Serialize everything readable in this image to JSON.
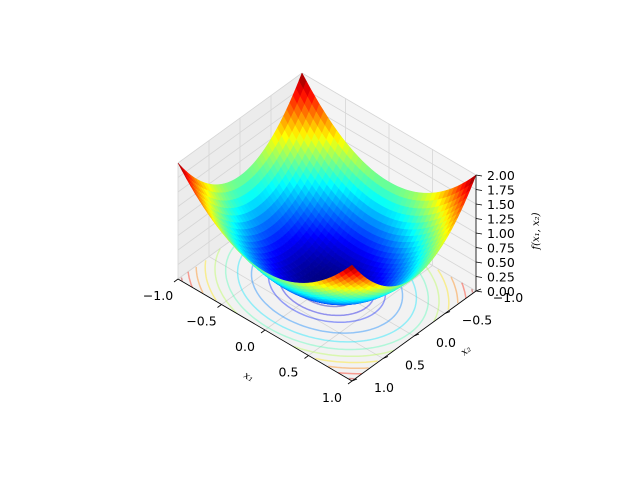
{
  "chart_data": {
    "type": "surface3d",
    "function": "f(x1, x2) = x1^2 + x2^2",
    "x_range": [
      -1.0,
      1.0
    ],
    "y_range": [
      -1.0,
      1.0
    ],
    "zlim": [
      0.0,
      2.0
    ],
    "x_ticks": [
      "−1.0",
      "−0.5",
      "0.0",
      "0.5",
      "1.0"
    ],
    "y_ticks": [
      "−1.0",
      "−0.5",
      "0.0",
      "0.5",
      "1.0"
    ],
    "z_ticks": [
      "0.00",
      "0.25",
      "0.50",
      "0.75",
      "1.00",
      "1.25",
      "1.50",
      "1.75",
      "2.00"
    ],
    "xlabel": "x₁",
    "ylabel": "x₂",
    "zlabel": "f(x₁, x₂)",
    "colormap": "jet",
    "contour_levels": [
      0.1,
      0.2,
      0.3,
      0.5,
      0.7,
      0.9,
      1.1,
      1.3,
      1.5,
      1.7,
      1.9
    ],
    "contour_on_floor": true,
    "grid": true,
    "pane_color": "#f2f2f2"
  }
}
